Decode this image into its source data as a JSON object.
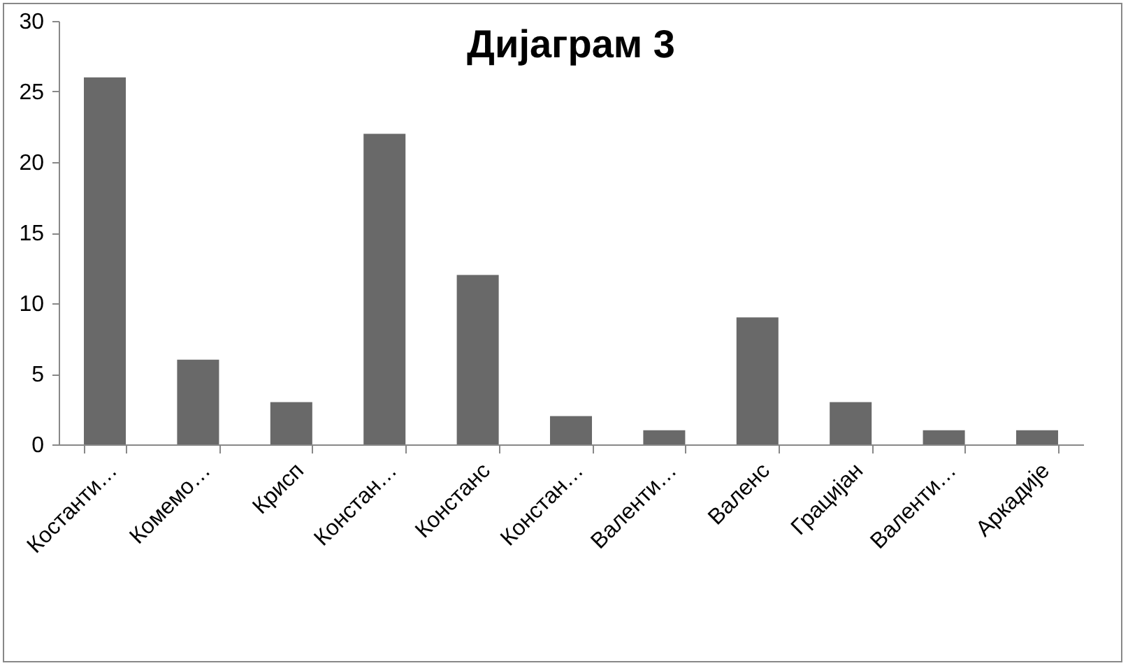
{
  "chart_data": {
    "type": "bar",
    "title": "Дијаграм 3",
    "categories": [
      "Костанти…",
      "Комемо…",
      "Крисп",
      "Констан…",
      "Констанс",
      "Констан…",
      "Валенти…",
      "Валенс",
      "Грацијан",
      "Валенти…",
      "Аркадије"
    ],
    "values": [
      26,
      6,
      3,
      22,
      12,
      2,
      1,
      9,
      3,
      1,
      1
    ],
    "color": "#696969",
    "ylim": [
      0,
      30
    ],
    "yticks": [
      0,
      5,
      10,
      15,
      20,
      25,
      30
    ],
    "grid": false
  }
}
